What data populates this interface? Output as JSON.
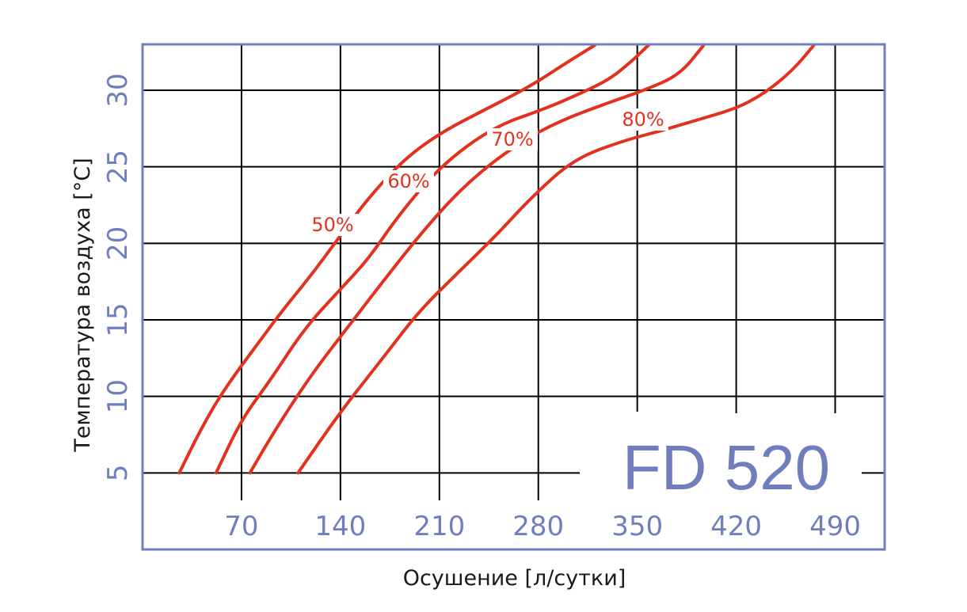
{
  "chart_data": {
    "type": "line",
    "model_label": "FD 520",
    "xlabel": "Осушение [л/сутки]",
    "ylabel": "Температура воздуха [°C]",
    "xlim": [
      0,
      525
    ],
    "ylim": [
      0,
      32.5
    ],
    "x_ticks": [
      70,
      140,
      210,
      280,
      350,
      420,
      490
    ],
    "y_ticks": [
      5,
      10,
      15,
      20,
      25,
      30
    ],
    "grid": true,
    "colors": {
      "curves": "#e2321f",
      "frame": "#6f7fbd",
      "ticks": "#6f7fbd",
      "grid": "#000000"
    },
    "series": [
      {
        "name": "50%",
        "points": [
          [
            26,
            5
          ],
          [
            42,
            8
          ],
          [
            58,
            10.5
          ],
          [
            82,
            13.5
          ],
          [
            98,
            15.5
          ],
          [
            120,
            18
          ],
          [
            140,
            20.5
          ],
          [
            160,
            23
          ],
          [
            185,
            25.5
          ],
          [
            212,
            27.3
          ],
          [
            248,
            29
          ],
          [
            275,
            30.3
          ],
          [
            300,
            31.8
          ],
          [
            320,
            33
          ]
        ]
      },
      {
        "name": "60%",
        "points": [
          [
            52,
            5
          ],
          [
            70,
            8.5
          ],
          [
            90,
            11
          ],
          [
            115,
            14.5
          ],
          [
            140,
            17
          ],
          [
            160,
            19
          ],
          [
            180,
            21.7
          ],
          [
            210,
            25
          ],
          [
            248,
            27.6
          ],
          [
            285,
            28.8
          ],
          [
            310,
            29.8
          ],
          [
            330,
            30.7
          ],
          [
            345,
            31.8
          ],
          [
            358,
            33
          ]
        ]
      },
      {
        "name": "70%",
        "points": [
          [
            76,
            5
          ],
          [
            95,
            8
          ],
          [
            120,
            11.5
          ],
          [
            145,
            14.5
          ],
          [
            170,
            17.5
          ],
          [
            200,
            21
          ],
          [
            230,
            24
          ],
          [
            265,
            26.5
          ],
          [
            295,
            28
          ],
          [
            330,
            29.2
          ],
          [
            355,
            30
          ],
          [
            380,
            31
          ],
          [
            397,
            33
          ]
        ]
      },
      {
        "name": "80%",
        "points": [
          [
            110,
            5
          ],
          [
            140,
            9
          ],
          [
            170,
            12.5
          ],
          [
            195,
            15.5
          ],
          [
            220,
            17.8
          ],
          [
            250,
            20.5
          ],
          [
            275,
            23
          ],
          [
            305,
            25.5
          ],
          [
            340,
            26.7
          ],
          [
            365,
            27.3
          ],
          [
            390,
            28
          ],
          [
            420,
            28.8
          ],
          [
            440,
            29.8
          ],
          [
            460,
            31.3
          ],
          [
            475,
            33
          ]
        ]
      }
    ],
    "labels": [
      {
        "text": "50%",
        "series": "50%"
      },
      {
        "text": "60%",
        "series": "60%"
      },
      {
        "text": "70%",
        "series": "70%"
      },
      {
        "text": "80%",
        "series": "80%"
      }
    ]
  }
}
